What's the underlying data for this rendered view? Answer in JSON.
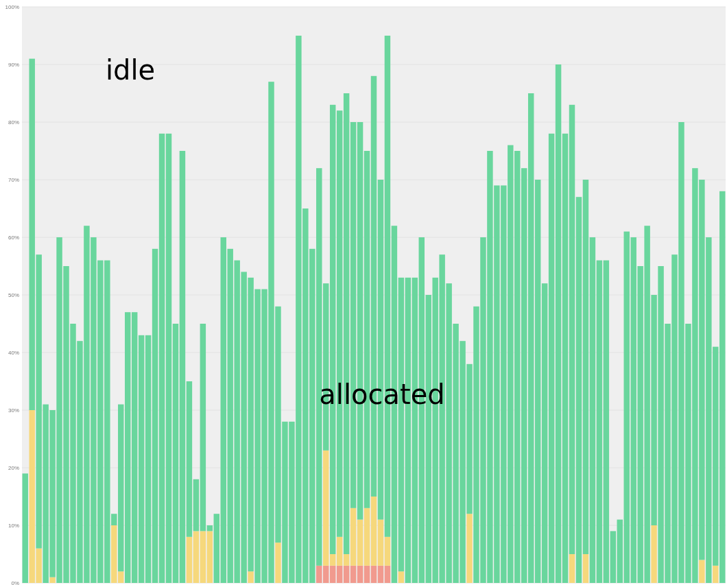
{
  "chart_data": {
    "type": "bar",
    "stacked": true,
    "annotations": [
      "idle",
      "allocated"
    ],
    "categories": [
      null,
      null,
      null,
      null,
      null,
      null,
      null,
      null,
      null,
      null,
      null,
      null,
      null,
      null,
      null,
      null,
      null,
      null,
      null,
      null,
      null,
      null,
      null,
      null,
      null,
      null,
      null,
      null,
      null,
      null,
      null,
      null,
      null,
      null,
      null,
      null,
      null,
      null,
      null,
      null,
      null,
      null,
      null,
      null,
      null,
      null,
      null,
      null,
      null,
      null,
      null,
      null,
      null,
      null,
      null,
      null,
      null,
      null,
      null,
      null,
      null,
      null,
      null,
      null,
      null,
      null,
      null,
      null,
      null,
      null,
      null,
      null,
      null,
      null,
      null,
      null,
      null,
      null,
      null,
      null,
      null,
      null,
      null,
      null,
      null,
      null,
      null,
      null,
      null,
      null,
      null,
      null,
      null,
      null,
      null,
      null,
      null,
      null,
      null,
      null,
      null,
      null,
      null
    ],
    "series": [
      {
        "color": "#f19a8e",
        "values": [
          null,
          null,
          null,
          null,
          null,
          null,
          null,
          null,
          null,
          null,
          null,
          null,
          null,
          null,
          null,
          null,
          null,
          null,
          null,
          null,
          null,
          null,
          null,
          null,
          null,
          null,
          null,
          null,
          null,
          null,
          null,
          null,
          null,
          null,
          null,
          null,
          null,
          null,
          null,
          null,
          null,
          null,
          null,
          3,
          3,
          3,
          3,
          3,
          3,
          3,
          3,
          3,
          3,
          3,
          null,
          null,
          null,
          null,
          null,
          null,
          null,
          null,
          null,
          null,
          null,
          null,
          null,
          null,
          null,
          null,
          null,
          null,
          null,
          null,
          null,
          null,
          null,
          null,
          null,
          null,
          null,
          null,
          null,
          null,
          null,
          null,
          null,
          null,
          null,
          null,
          null,
          null,
          null,
          null,
          null,
          null,
          null,
          null,
          null,
          null,
          null,
          null,
          null
        ]
      },
      {
        "color": "#f6d87c",
        "values": [
          null,
          30,
          6,
          null,
          1,
          null,
          null,
          null,
          null,
          null,
          null,
          null,
          null,
          10,
          2,
          null,
          null,
          null,
          null,
          null,
          null,
          null,
          null,
          null,
          8,
          9,
          9,
          9,
          null,
          null,
          null,
          null,
          null,
          2,
          null,
          null,
          null,
          7,
          null,
          null,
          null,
          null,
          null,
          null,
          20,
          2,
          5,
          2,
          10,
          8,
          10,
          12,
          8,
          5,
          null,
          2,
          null,
          null,
          null,
          null,
          null,
          null,
          null,
          null,
          null,
          12,
          null,
          null,
          null,
          null,
          null,
          null,
          null,
          null,
          null,
          null,
          null,
          null,
          null,
          null,
          5,
          null,
          5,
          null,
          null,
          null,
          null,
          null,
          null,
          null,
          null,
          null,
          10,
          null,
          null,
          null,
          null,
          null,
          null,
          4,
          null,
          3,
          null
        ]
      },
      {
        "color": "#69d69d",
        "values": [
          19,
          61,
          51,
          31,
          29,
          60,
          55,
          45,
          42,
          62,
          60,
          56,
          56,
          2,
          29,
          47,
          47,
          43,
          43,
          58,
          78,
          78,
          45,
          75,
          27,
          9,
          36,
          1,
          12,
          60,
          58,
          56,
          54,
          51,
          51,
          51,
          87,
          41,
          28,
          28,
          95,
          65,
          58,
          69,
          29,
          78,
          74,
          80,
          67,
          69,
          62,
          73,
          59,
          87,
          62,
          51,
          53,
          53,
          60,
          50,
          53,
          57,
          52,
          45,
          42,
          26,
          48,
          60,
          75,
          69,
          69,
          76,
          75,
          72,
          85,
          70,
          52,
          78,
          90,
          78,
          78,
          67,
          65,
          60,
          56,
          56,
          9,
          11,
          61,
          60,
          55,
          62,
          40,
          55,
          45,
          57,
          80,
          45,
          72,
          66,
          60,
          38,
          68
        ]
      }
    ],
    "ylim": [
      0,
      100
    ],
    "yticks": [
      {
        "value": 0,
        "label": "0%"
      },
      {
        "value": 10,
        "label": "10%"
      },
      {
        "value": 20,
        "label": "20%"
      },
      {
        "value": 30,
        "label": "30%"
      },
      {
        "value": 40,
        "label": "40%"
      },
      {
        "value": 50,
        "label": "50%"
      },
      {
        "value": 60,
        "label": "60%"
      },
      {
        "value": 70,
        "label": "70%"
      },
      {
        "value": 80,
        "label": "80%"
      },
      {
        "value": 90,
        "label": "90%"
      },
      {
        "value": 100,
        "label": "100%"
      }
    ],
    "grid": "y",
    "tick_labels": "y"
  }
}
